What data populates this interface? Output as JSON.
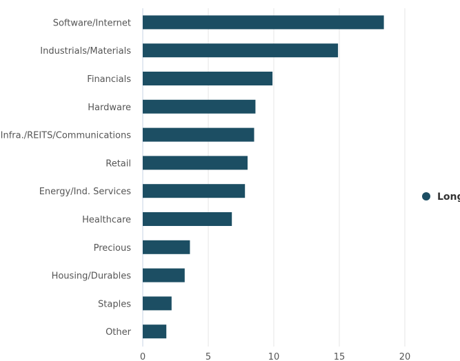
{
  "chart_data": {
    "type": "bar",
    "orientation": "horizontal",
    "categories": [
      "Software/Internet",
      "Industrials/Materials",
      "Financials",
      "Hardware",
      "Infra./REITS/Communications",
      "Retail",
      "Energy/Ind. Services",
      "Healthcare",
      "Precious",
      "Housing/Durables",
      "Staples",
      "Other"
    ],
    "series": [
      {
        "name": "Long",
        "color": "#1c4e63",
        "values": [
          18.4,
          14.9,
          9.9,
          8.6,
          8.5,
          8.0,
          7.8,
          6.8,
          3.6,
          3.2,
          2.2,
          1.8
        ]
      }
    ],
    "xlim": [
      0,
      20
    ],
    "xticks": [
      0,
      5,
      10,
      15,
      20
    ],
    "grid": "vertical",
    "legend": "right",
    "title": "",
    "xlabel": "",
    "ylabel": ""
  }
}
